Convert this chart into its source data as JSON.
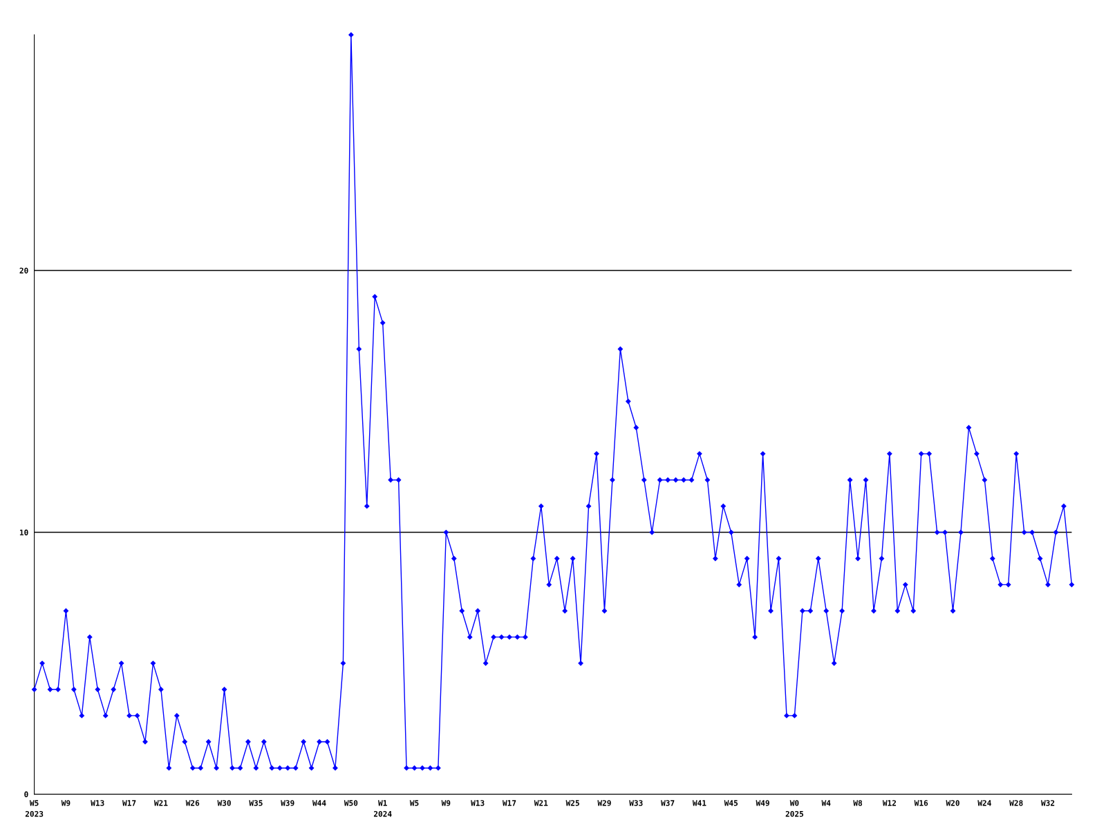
{
  "chart_data": {
    "type": "line",
    "categories": [
      "W5\n2023",
      null,
      null,
      null,
      "W9",
      null,
      null,
      null,
      "W13",
      null,
      null,
      null,
      "W17",
      null,
      null,
      null,
      "W21",
      null,
      null,
      null,
      "W26",
      null,
      null,
      null,
      "W30",
      null,
      null,
      null,
      "W35",
      null,
      null,
      null,
      "W39",
      null,
      null,
      null,
      "W44",
      null,
      null,
      null,
      "W50",
      null,
      null,
      null,
      "W1\n2024",
      null,
      null,
      null,
      "W5",
      null,
      null,
      null,
      "W9",
      null,
      null,
      null,
      "W13",
      null,
      null,
      null,
      "W17",
      null,
      null,
      null,
      "W21",
      null,
      null,
      null,
      "W25",
      null,
      null,
      null,
      "W29",
      null,
      null,
      null,
      "W33",
      null,
      null,
      null,
      "W37",
      null,
      null,
      null,
      "W41",
      null,
      null,
      null,
      "W45",
      null,
      null,
      null,
      "W49",
      null,
      null,
      null,
      "W0\n2025",
      null,
      null,
      null,
      "W4",
      null,
      null,
      null,
      "W8",
      null,
      null,
      null,
      "W12",
      null,
      null,
      null,
      "W16",
      null,
      null,
      null,
      "W20",
      null,
      null,
      null,
      "W24",
      null,
      null,
      null,
      "W28",
      null,
      null,
      null,
      "W32",
      null,
      null,
      null
    ],
    "series": [
      {
        "color": "#0000ff",
        "values": [
          4,
          5,
          4,
          4,
          7,
          4,
          3,
          6,
          4,
          3,
          4,
          5,
          3,
          3,
          2,
          5,
          4,
          1,
          3,
          2,
          1,
          1,
          2,
          1,
          4,
          1,
          1,
          2,
          1,
          2,
          1,
          1,
          1,
          1,
          2,
          1,
          2,
          2,
          1,
          5,
          29,
          17,
          11,
          19,
          18,
          12,
          12,
          1,
          1,
          1,
          1,
          1,
          10,
          9,
          7,
          6,
          7,
          5,
          6,
          6,
          6,
          6,
          6,
          9,
          11,
          8,
          9,
          7,
          9,
          5,
          11,
          13,
          7,
          12,
          17,
          15,
          14,
          12,
          10,
          12,
          12,
          12,
          12,
          12,
          13,
          12,
          9,
          11,
          10,
          8,
          9,
          6,
          13,
          7,
          9,
          3,
          3,
          7,
          7,
          9,
          7,
          5,
          7,
          12,
          9,
          12,
          7,
          9,
          13,
          7,
          8,
          7,
          13,
          13,
          10,
          10,
          7,
          10,
          14,
          13,
          12,
          9,
          8,
          8,
          13,
          10,
          10,
          9,
          8,
          10,
          11,
          8
        ]
      }
    ],
    "ylim": [
      0,
      29
    ],
    "yticks": [
      0,
      10,
      20
    ],
    "grid": "y",
    "marker": "diamond",
    "line_style": "solid"
  }
}
